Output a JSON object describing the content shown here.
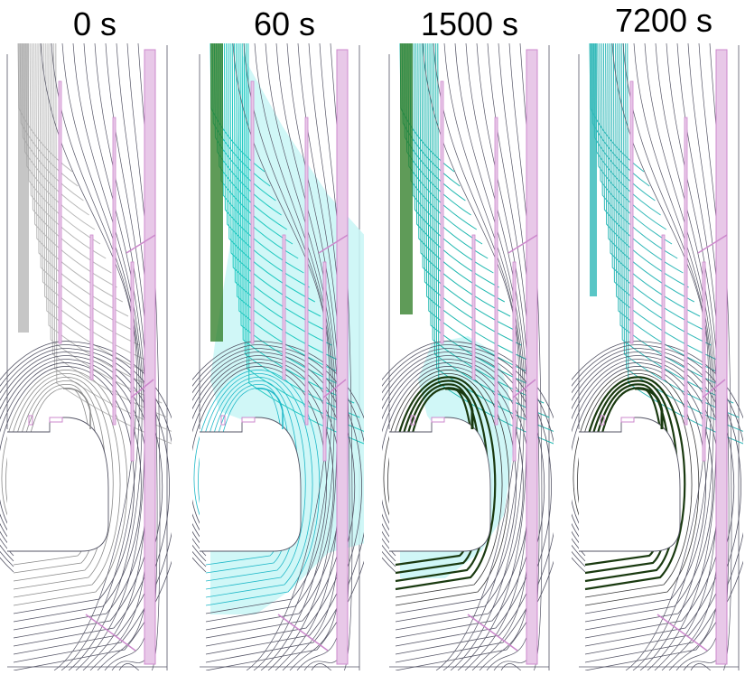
{
  "figure": {
    "panels": [
      {
        "label": "0 s",
        "shade": "none",
        "fan": "#b8b8b8",
        "mid": "#8a8a8a",
        "bold": false
      },
      {
        "label": "60 s",
        "shade": "#c8f6f6",
        "fan": "#20c8c0",
        "mid": "#20b8c8",
        "bold": false
      },
      {
        "label": "1500 s",
        "shade": "#c8f6f6",
        "fan": "#20b8b0",
        "mid": "#3a3a3a",
        "bold": true
      },
      {
        "label": "7200 s",
        "shade": "none",
        "fan": "#30b8b8",
        "mid": "#3a3a3a",
        "bold": true
      }
    ],
    "colors": {
      "line": "#555566",
      "structure": "#cc88cc",
      "structure_fill": "#e8c8e8",
      "bold_line": "#1a3a10",
      "accent_green": "#2a7a20"
    }
  }
}
